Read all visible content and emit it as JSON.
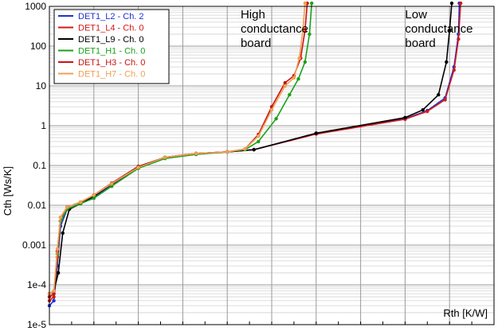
{
  "chart_data": {
    "type": "line",
    "xlabel": "Rth  [K/W]",
    "ylabel": "Cth  [Ws/K]",
    "y_scale": "log",
    "ylim": [
      1e-05,
      1000
    ],
    "y_tick_labels": [
      "1000",
      "100",
      "10",
      "1",
      "0.1",
      "0.01",
      "0.001",
      "1e-4",
      "1e-5"
    ],
    "x_tick_labels": [],
    "xlim": [
      0,
      1
    ],
    "grid": true,
    "legend_position": "top-left",
    "annotations": [
      {
        "lines": [
          "High",
          "conductance",
          "board"
        ],
        "x": 0.43,
        "y": 500
      },
      {
        "lines": [
          "Low",
          "conductance",
          "board"
        ],
        "x": 0.8,
        "y": 500
      }
    ],
    "series": [
      {
        "name": "DET1_L2 - Ch. 2",
        "color": "#1f2fd6",
        "points": [
          [
            0.0,
            3e-05
          ],
          [
            0.01,
            4e-05
          ],
          [
            0.018,
            0.0003
          ],
          [
            0.025,
            0.003
          ],
          [
            0.04,
            0.008
          ],
          [
            0.07,
            0.011
          ],
          [
            0.1,
            0.016
          ],
          [
            0.14,
            0.033
          ],
          [
            0.2,
            0.09
          ],
          [
            0.26,
            0.16
          ],
          [
            0.33,
            0.2
          ],
          [
            0.4,
            0.22
          ],
          [
            0.46,
            0.25
          ],
          [
            0.6,
            0.62
          ],
          [
            0.8,
            1.5
          ],
          [
            0.85,
            2.4
          ],
          [
            0.89,
            5
          ],
          [
            0.91,
            30
          ],
          [
            0.92,
            200
          ],
          [
            0.922,
            1200
          ]
        ]
      },
      {
        "name": "DET1_L4 - Ch. 0",
        "color": "#d21919",
        "points": [
          [
            0.0,
            4e-05
          ],
          [
            0.01,
            5e-05
          ],
          [
            0.018,
            0.0005
          ],
          [
            0.025,
            0.004
          ],
          [
            0.04,
            0.009
          ],
          [
            0.07,
            0.012
          ],
          [
            0.1,
            0.018
          ],
          [
            0.14,
            0.036
          ],
          [
            0.2,
            0.095
          ],
          [
            0.26,
            0.16
          ],
          [
            0.33,
            0.2
          ],
          [
            0.4,
            0.22
          ],
          [
            0.46,
            0.25
          ],
          [
            0.6,
            0.62
          ],
          [
            0.8,
            1.45
          ],
          [
            0.85,
            2.3
          ],
          [
            0.89,
            4.5
          ],
          [
            0.91,
            25
          ],
          [
            0.92,
            150
          ],
          [
            0.925,
            1200
          ]
        ]
      },
      {
        "name": "DET1_L9 - Ch. 0",
        "color": "#000000",
        "points": [
          [
            0.0,
            6e-05
          ],
          [
            0.01,
            7e-05
          ],
          [
            0.02,
            0.0002
          ],
          [
            0.03,
            0.002
          ],
          [
            0.045,
            0.008
          ],
          [
            0.07,
            0.011
          ],
          [
            0.1,
            0.017
          ],
          [
            0.14,
            0.034
          ],
          [
            0.2,
            0.092
          ],
          [
            0.26,
            0.16
          ],
          [
            0.33,
            0.2
          ],
          [
            0.4,
            0.22
          ],
          [
            0.46,
            0.25
          ],
          [
            0.6,
            0.65
          ],
          [
            0.8,
            1.6
          ],
          [
            0.84,
            2.5
          ],
          [
            0.875,
            6
          ],
          [
            0.893,
            40
          ],
          [
            0.9,
            250
          ],
          [
            0.905,
            1200
          ]
        ]
      },
      {
        "name": "DET1_H1 - Ch. 0",
        "color": "#1aa11a",
        "points": [
          [
            0.0,
            5e-05
          ],
          [
            0.01,
            6e-05
          ],
          [
            0.018,
            0.0006
          ],
          [
            0.025,
            0.004
          ],
          [
            0.04,
            0.008
          ],
          [
            0.07,
            0.011
          ],
          [
            0.1,
            0.015
          ],
          [
            0.14,
            0.03
          ],
          [
            0.2,
            0.085
          ],
          [
            0.26,
            0.15
          ],
          [
            0.33,
            0.19
          ],
          [
            0.4,
            0.22
          ],
          [
            0.44,
            0.25
          ],
          [
            0.47,
            0.4
          ],
          [
            0.51,
            1.5
          ],
          [
            0.54,
            6
          ],
          [
            0.56,
            15
          ],
          [
            0.575,
            40
          ],
          [
            0.585,
            200
          ],
          [
            0.59,
            1200
          ]
        ]
      },
      {
        "name": "DET1_H3 - Ch. 0",
        "color": "#cc1212",
        "points": [
          [
            0.0,
            5e-05
          ],
          [
            0.01,
            6e-05
          ],
          [
            0.018,
            0.0007
          ],
          [
            0.025,
            0.005
          ],
          [
            0.04,
            0.009
          ],
          [
            0.07,
            0.012
          ],
          [
            0.1,
            0.018
          ],
          [
            0.14,
            0.035
          ],
          [
            0.2,
            0.09
          ],
          [
            0.26,
            0.16
          ],
          [
            0.33,
            0.2
          ],
          [
            0.4,
            0.22
          ],
          [
            0.44,
            0.26
          ],
          [
            0.47,
            0.6
          ],
          [
            0.5,
            3
          ],
          [
            0.53,
            12
          ],
          [
            0.55,
            18
          ],
          [
            0.565,
            50
          ],
          [
            0.575,
            250
          ],
          [
            0.58,
            1200
          ]
        ]
      },
      {
        "name": "DET1_H7 - Ch. 0",
        "color": "#f0a050",
        "points": [
          [
            0.0,
            6e-05
          ],
          [
            0.01,
            7e-05
          ],
          [
            0.018,
            0.0008
          ],
          [
            0.025,
            0.005
          ],
          [
            0.04,
            0.009
          ],
          [
            0.07,
            0.012
          ],
          [
            0.1,
            0.018
          ],
          [
            0.14,
            0.035
          ],
          [
            0.2,
            0.09
          ],
          [
            0.26,
            0.16
          ],
          [
            0.33,
            0.2
          ],
          [
            0.4,
            0.22
          ],
          [
            0.44,
            0.26
          ],
          [
            0.47,
            0.55
          ],
          [
            0.5,
            2.5
          ],
          [
            0.53,
            10
          ],
          [
            0.55,
            16
          ],
          [
            0.562,
            50
          ],
          [
            0.57,
            250
          ],
          [
            0.575,
            1200
          ]
        ]
      }
    ]
  }
}
